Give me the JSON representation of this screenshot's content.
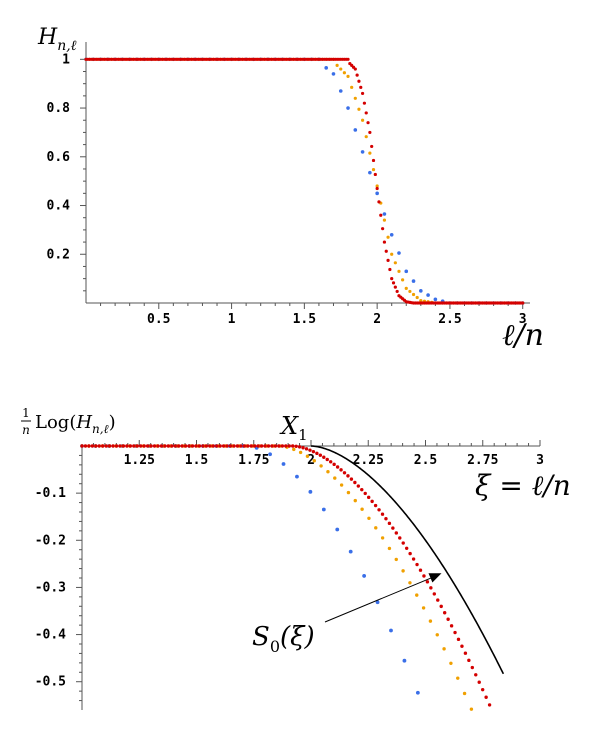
{
  "chart_data": [
    {
      "type": "scatter",
      "ylabel": "H_{n,ℓ}",
      "xlabel": "ℓ/n",
      "xlim": [
        0,
        3.05
      ],
      "ylim": [
        0,
        1.03
      ],
      "xticks": [
        {
          "v": 0.5,
          "label": "0.5"
        },
        {
          "v": 1,
          "label": "1"
        },
        {
          "v": 1.5,
          "label": "1.5"
        },
        {
          "v": 2,
          "label": "2"
        },
        {
          "v": 2.5,
          "label": "2.5"
        },
        {
          "v": 3,
          "label": "3"
        }
      ],
      "yticks": [
        {
          "v": 0.2,
          "label": "0.2"
        },
        {
          "v": 0.4,
          "label": "0.4"
        },
        {
          "v": 0.6,
          "label": "0.6"
        },
        {
          "v": 0.8,
          "label": "0.8"
        },
        {
          "v": 1,
          "label": "1"
        }
      ],
      "series": [
        {
          "color": "#3a6fe8",
          "x_range": [
            0,
            3
          ],
          "points": 60,
          "midpoints": [
            [
              1.6,
              0.99
            ],
            [
              1.7,
              0.94
            ],
            [
              1.8,
              0.8
            ],
            [
              1.9,
              0.62
            ],
            [
              2.0,
              0.45
            ],
            [
              2.1,
              0.28
            ],
            [
              2.2,
              0.13
            ],
            [
              2.3,
              0.05
            ],
            [
              2.4,
              0.015
            ],
            [
              2.5,
              0.0
            ]
          ]
        },
        {
          "color": "#f0a000",
          "x_range": [
            0,
            3
          ],
          "points": 120,
          "midpoints": [
            [
              1.7,
              0.99
            ],
            [
              1.8,
              0.93
            ],
            [
              1.9,
              0.75
            ],
            [
              2.0,
              0.48
            ],
            [
              2.1,
              0.2
            ],
            [
              2.2,
              0.06
            ],
            [
              2.3,
              0.01
            ],
            [
              2.4,
              0.0
            ]
          ]
        },
        {
          "color": "#d40000",
          "x_range": [
            0,
            3
          ],
          "points": 240,
          "midpoints": [
            [
              1.8,
              0.99
            ],
            [
              1.85,
              0.96
            ],
            [
              1.9,
              0.86
            ],
            [
              1.95,
              0.7
            ],
            [
              2.0,
              0.47
            ],
            [
              2.05,
              0.25
            ],
            [
              2.1,
              0.1
            ],
            [
              2.15,
              0.03
            ],
            [
              2.2,
              0.005
            ],
            [
              2.25,
              0.0
            ]
          ]
        }
      ]
    },
    {
      "type": "scatter",
      "ylabel": "Log(H_{n,ℓ})",
      "ylabel_prefix_num": "1",
      "ylabel_prefix_den": "n",
      "xlabel": "ξ = ℓ/n",
      "xlim": [
        1.0,
        3.0
      ],
      "ylim": [
        -0.56,
        0.0
      ],
      "xticks": [
        {
          "v": 1.25,
          "label": "1.25"
        },
        {
          "v": 1.5,
          "label": "1.5"
        },
        {
          "v": 1.75,
          "label": "1.75"
        },
        {
          "v": 2.0,
          "label": "2"
        },
        {
          "v": 2.25,
          "label": "2.25"
        },
        {
          "v": 2.5,
          "label": "2.5"
        },
        {
          "v": 2.75,
          "label": "2.75"
        },
        {
          "v": 3.0,
          "label": "3"
        }
      ],
      "yticks": [
        {
          "v": -0.1,
          "label": "-0.1"
        },
        {
          "v": -0.2,
          "label": "-0.2"
        },
        {
          "v": -0.3,
          "label": "-0.3"
        },
        {
          "v": -0.4,
          "label": "-0.4"
        },
        {
          "v": -0.5,
          "label": "-0.5"
        }
      ],
      "annotations": [
        {
          "text": "X",
          "sub": "1",
          "x": 2.0
        },
        {
          "text": "S",
          "sub": "0",
          "suffix": "(ξ)",
          "x": 2.57,
          "y": -0.27
        }
      ],
      "series": [
        {
          "color": "#3a6fe8",
          "x_range": [
            1.0,
            2.76
          ],
          "points": 30,
          "onset": 1.72,
          "k": 0.86
        },
        {
          "color": "#f0a000",
          "x_range": [
            1.0,
            2.79
          ],
          "points": 60,
          "onset": 1.86,
          "k": 0.75
        },
        {
          "color": "#d40000",
          "x_range": [
            1.0,
            2.81
          ],
          "points": 120,
          "onset": 1.92,
          "k": 0.71
        },
        {
          "color": "#000000",
          "type": "line",
          "x_range": [
            2.0,
            2.84
          ],
          "onset": 2.0,
          "k": 0.65
        }
      ]
    }
  ]
}
